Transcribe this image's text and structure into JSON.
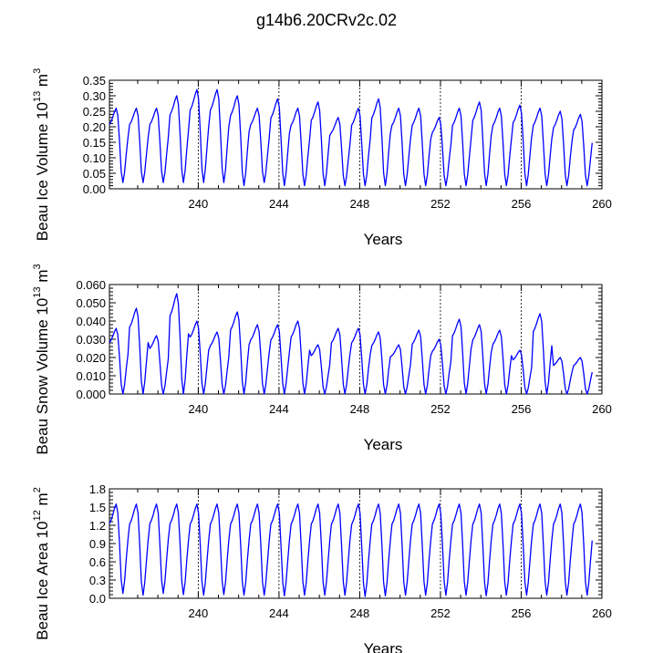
{
  "title": "g14b6.20CRv2c.02",
  "line_color": "#0000ff",
  "chart_data": [
    {
      "type": "line",
      "title": "",
      "xlabel": "Years",
      "ylabel": {
        "text": "Beau Ice Volume 10",
        "exp": "13",
        "unit": " m",
        "unit_exp": "3"
      },
      "xlim": [
        235.6,
        260
      ],
      "ylim": [
        0,
        0.35
      ],
      "xticks": [
        240,
        244,
        248,
        252,
        256,
        260
      ],
      "yticks": [
        "0.00",
        "0.05",
        "0.10",
        "0.15",
        "0.20",
        "0.25",
        "0.30",
        "0.35"
      ],
      "reference_lines": [
        240,
        244,
        248,
        252,
        256
      ],
      "series": [
        {
          "x_start": 235.6,
          "x_step": 1,
          "peaks": [
            0.26,
            0.26,
            0.26,
            0.3,
            0.32,
            0.32,
            0.3,
            0.26,
            0.29,
            0.26,
            0.28,
            0.23,
            0.26,
            0.29,
            0.26,
            0.26,
            0.23,
            0.26,
            0.28,
            0.26,
            0.27,
            0.26,
            0.25,
            0.24
          ],
          "troughs": [
            0.02,
            0.02,
            0.02,
            0.02,
            0.02,
            0.02,
            0.01,
            0.02,
            0.01,
            0.01,
            0.01,
            0.01,
            0.01,
            0.01,
            0.01,
            0.01,
            0.01,
            0.01,
            0.01,
            0.01,
            0.01,
            0.01,
            0.01,
            0.01
          ]
        }
      ]
    },
    {
      "type": "line",
      "title": "",
      "xlabel": "Years",
      "ylabel": {
        "text": "Beau Snow Volume 10",
        "exp": "13",
        "unit": " m",
        "unit_exp": "3"
      },
      "xlim": [
        235.6,
        260
      ],
      "ylim": [
        0,
        0.06
      ],
      "xticks": [
        240,
        244,
        248,
        252,
        256,
        260
      ],
      "yticks": [
        "0.000",
        "0.010",
        "0.020",
        "0.030",
        "0.040",
        "0.050",
        "0.060"
      ],
      "reference_lines": [
        240,
        244,
        248,
        252,
        256
      ],
      "series": [
        {
          "x_start": 235.6,
          "x_step": 1,
          "peaks": [
            0.036,
            0.047,
            0.032,
            0.055,
            0.04,
            0.034,
            0.045,
            0.038,
            0.038,
            0.04,
            0.027,
            0.036,
            0.036,
            0.034,
            0.027,
            0.035,
            0.03,
            0.041,
            0.038,
            0.035,
            0.024,
            0.044,
            0.02,
            0.02
          ],
          "troughs": [
            0,
            0,
            0,
            0,
            0,
            0,
            0,
            0,
            0,
            0,
            0,
            0,
            0,
            0,
            0,
            0,
            0,
            0,
            0,
            0,
            0,
            0,
            0,
            0
          ]
        }
      ]
    },
    {
      "type": "line",
      "title": "",
      "xlabel": "Years",
      "ylabel": {
        "text": "Beau Ice Area 10",
        "exp": "12",
        "unit": " m",
        "unit_exp": "2"
      },
      "xlim": [
        235.6,
        260
      ],
      "ylim": [
        0,
        1.8
      ],
      "xticks": [
        240,
        244,
        248,
        252,
        256,
        260
      ],
      "yticks": [
        "0.0",
        "0.3",
        "0.6",
        "0.9",
        "1.2",
        "1.5",
        "1.8"
      ],
      "reference_lines": [
        240,
        244,
        248,
        252,
        256
      ],
      "series": [
        {
          "x_start": 235.6,
          "x_step": 1,
          "peaks": [
            1.55,
            1.55,
            1.55,
            1.55,
            1.55,
            1.55,
            1.55,
            1.55,
            1.55,
            1.55,
            1.55,
            1.55,
            1.55,
            1.55,
            1.55,
            1.55,
            1.55,
            1.55,
            1.55,
            1.55,
            1.55,
            1.55,
            1.55,
            1.55
          ],
          "troughs": [
            0.08,
            0.05,
            0.08,
            0.06,
            0.05,
            0.06,
            0.05,
            0.05,
            0.04,
            0.05,
            0.05,
            0.05,
            0.03,
            0.04,
            0.05,
            0.05,
            0.05,
            0.05,
            0.04,
            0.05,
            0.05,
            0.05,
            0.05,
            0.05
          ]
        }
      ]
    }
  ]
}
